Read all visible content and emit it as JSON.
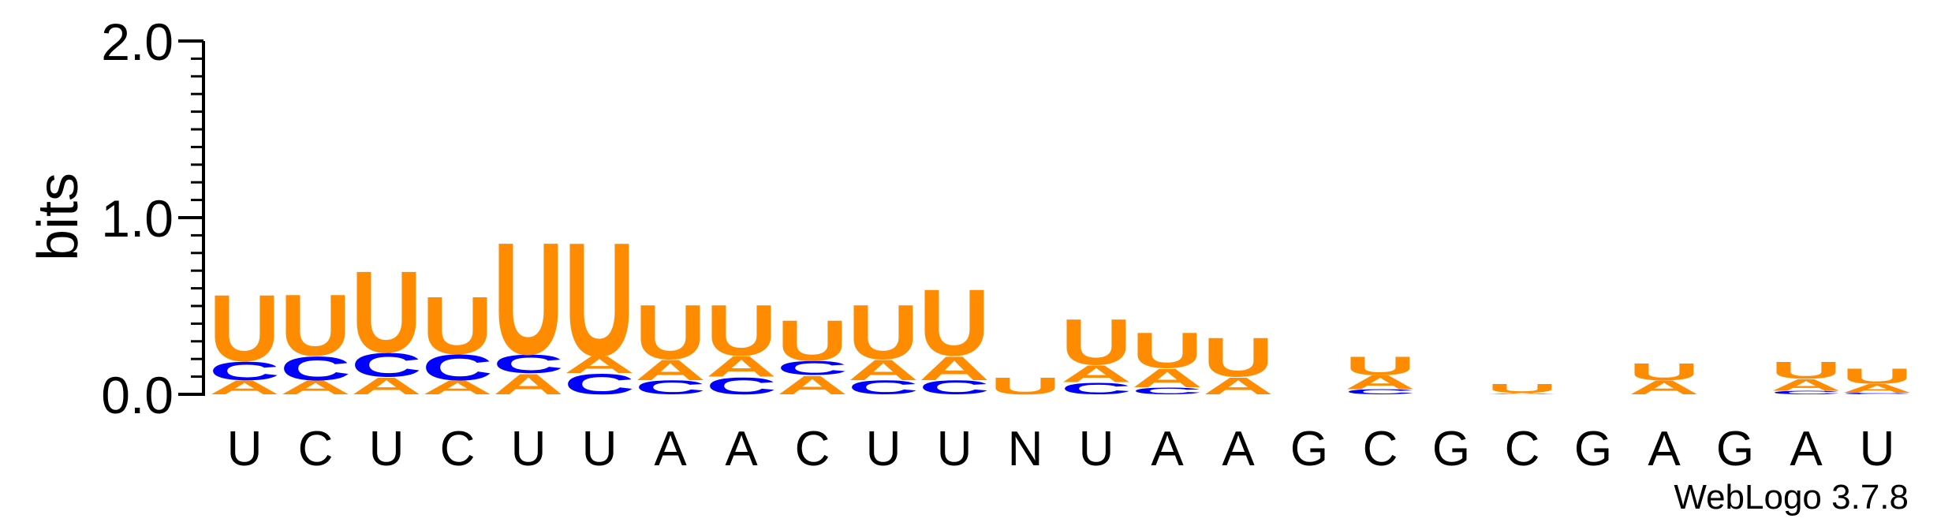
{
  "chart_data": {
    "type": "sequence-logo",
    "ylabel": "bits",
    "ylim": [
      0,
      2.0
    ],
    "yticks": [
      {
        "value": 0.0,
        "label": "0.0"
      },
      {
        "value": 1.0,
        "label": "1.0"
      },
      {
        "value": 2.0,
        "label": "2.0"
      }
    ],
    "yminor_step": 0.1,
    "positions": [
      "U",
      "C",
      "U",
      "C",
      "U",
      "U",
      "A",
      "A",
      "C",
      "U",
      "U",
      "N",
      "U",
      "A",
      "A",
      "G",
      "C",
      "G",
      "C",
      "G",
      "A",
      "G",
      "A",
      "U"
    ],
    "colors": {
      "A": "#ff8c00",
      "U": "#ff8c00",
      "C": "#0000ff",
      "G": "#000000"
    },
    "stacks": [
      [
        {
          "letter": "A",
          "bits": 0.08
        },
        {
          "letter": "C",
          "bits": 0.11
        },
        {
          "letter": "U",
          "bits": 0.39
        }
      ],
      [
        {
          "letter": "A",
          "bits": 0.08
        },
        {
          "letter": "C",
          "bits": 0.14
        },
        {
          "letter": "U",
          "bits": 0.36
        }
      ],
      [
        {
          "letter": "A",
          "bits": 0.1
        },
        {
          "letter": "C",
          "bits": 0.14
        },
        {
          "letter": "U",
          "bits": 0.48
        }
      ],
      [
        {
          "letter": "A",
          "bits": 0.08
        },
        {
          "letter": "C",
          "bits": 0.15
        },
        {
          "letter": "U",
          "bits": 0.34
        }
      ],
      [
        {
          "letter": "A",
          "bits": 0.12
        },
        {
          "letter": "C",
          "bits": 0.11
        },
        {
          "letter": "U",
          "bits": 0.66
        }
      ],
      [
        {
          "letter": "C",
          "bits": 0.12
        },
        {
          "letter": "A",
          "bits": 0.1
        },
        {
          "letter": "U",
          "bits": 0.67
        }
      ],
      [
        {
          "letter": "C",
          "bits": 0.08
        },
        {
          "letter": "A",
          "bits": 0.12
        },
        {
          "letter": "U",
          "bits": 0.32
        }
      ],
      [
        {
          "letter": "C",
          "bits": 0.1
        },
        {
          "letter": "A",
          "bits": 0.12
        },
        {
          "letter": "U",
          "bits": 0.3
        }
      ],
      [
        {
          "letter": "A",
          "bits": 0.11
        },
        {
          "letter": "C",
          "bits": 0.08
        },
        {
          "letter": "U",
          "bits": 0.24
        }
      ],
      [
        {
          "letter": "C",
          "bits": 0.08
        },
        {
          "letter": "A",
          "bits": 0.12
        },
        {
          "letter": "U",
          "bits": 0.32
        }
      ],
      [
        {
          "letter": "C",
          "bits": 0.08
        },
        {
          "letter": "A",
          "bits": 0.14
        },
        {
          "letter": "U",
          "bits": 0.39
        }
      ],
      [
        {
          "letter": "U",
          "bits": 0.1
        }
      ],
      [
        {
          "letter": "C",
          "bits": 0.07
        },
        {
          "letter": "A",
          "bits": 0.1
        },
        {
          "letter": "U",
          "bits": 0.27
        }
      ],
      [
        {
          "letter": "C",
          "bits": 0.04
        },
        {
          "letter": "A",
          "bits": 0.11
        },
        {
          "letter": "U",
          "bits": 0.21
        }
      ],
      [
        {
          "letter": "A",
          "bits": 0.1
        },
        {
          "letter": "U",
          "bits": 0.23
        }
      ],
      [],
      [
        {
          "letter": "C",
          "bits": 0.03
        },
        {
          "letter": "A",
          "bits": 0.08
        },
        {
          "letter": "U",
          "bits": 0.11
        }
      ],
      [],
      [
        {
          "letter": "A",
          "bits": 0.01
        },
        {
          "letter": "U",
          "bits": 0.05
        }
      ],
      [],
      [
        {
          "letter": "A",
          "bits": 0.08
        },
        {
          "letter": "U",
          "bits": 0.1
        }
      ],
      [],
      [
        {
          "letter": "C",
          "bits": 0.02
        },
        {
          "letter": "A",
          "bits": 0.07
        },
        {
          "letter": "U",
          "bits": 0.1
        }
      ],
      [
        {
          "letter": "C",
          "bits": 0.01
        },
        {
          "letter": "A",
          "bits": 0.05
        },
        {
          "letter": "U",
          "bits": 0.09
        }
      ]
    ]
  },
  "footer": {
    "credit": "WebLogo 3.7.8"
  }
}
